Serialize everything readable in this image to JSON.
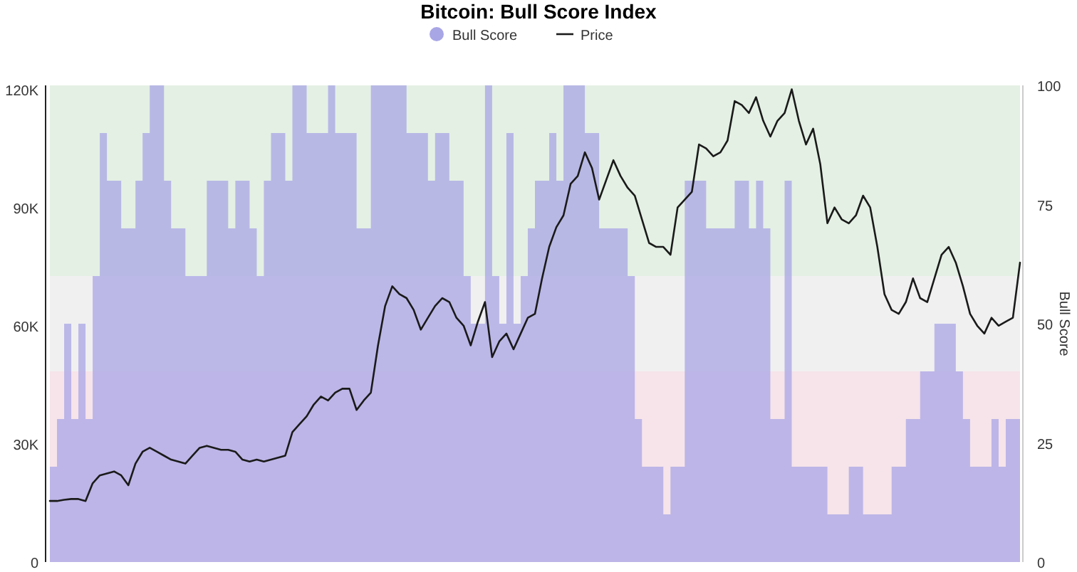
{
  "chart_data": {
    "type": "line",
    "title": "Bitcoin: Bull Score Index",
    "y2label": "Bull Score",
    "legend": "top",
    "categories": [
      null,
      null,
      null,
      null,
      null,
      null,
      null,
      null,
      null,
      null,
      null,
      null,
      null,
      null,
      null,
      null,
      null,
      null,
      null,
      null,
      null,
      null,
      null,
      null,
      null,
      null,
      null,
      null,
      null,
      null,
      null,
      null,
      null,
      null,
      null,
      null,
      null,
      null,
      null,
      null,
      null,
      null,
      null,
      null,
      null,
      null,
      null,
      null,
      null,
      null,
      null,
      null,
      null,
      null,
      null,
      null,
      null,
      null,
      null,
      null,
      null,
      null,
      null,
      null,
      null,
      null,
      null,
      null,
      null,
      null,
      null,
      null,
      null,
      null,
      null,
      null,
      null,
      null,
      null,
      null,
      null,
      null,
      null,
      null,
      null,
      null,
      null,
      null,
      null,
      null,
      null,
      null,
      null,
      null,
      null,
      null,
      null,
      null,
      null,
      null,
      null,
      null,
      null,
      null,
      null,
      null,
      null,
      null,
      null,
      null,
      null,
      null,
      null,
      null,
      null,
      null,
      null,
      null,
      null,
      null,
      null,
      null,
      null,
      null,
      null,
      null,
      null,
      null,
      null,
      null,
      null,
      null,
      null,
      null,
      null,
      null,
      null
    ],
    "series": [
      {
        "name": "Bull Score",
        "type": "area",
        "axis": "y2",
        "color": "#a9a6e6",
        "values": [
          20,
          30,
          50,
          30,
          50,
          30,
          60,
          90,
          80,
          80,
          70,
          70,
          80,
          90,
          100,
          100,
          80,
          70,
          70,
          60,
          60,
          60,
          80,
          80,
          80,
          70,
          80,
          80,
          70,
          60,
          80,
          90,
          90,
          80,
          100,
          100,
          90,
          90,
          90,
          100,
          90,
          90,
          90,
          70,
          70,
          100,
          100,
          100,
          100,
          100,
          90,
          90,
          90,
          80,
          90,
          90,
          80,
          80,
          60,
          50,
          50,
          100,
          60,
          50,
          90,
          50,
          60,
          70,
          80,
          80,
          90,
          80,
          100,
          100,
          100,
          90,
          90,
          70,
          70,
          70,
          70,
          60,
          30,
          20,
          20,
          20,
          10,
          20,
          20,
          80,
          80,
          80,
          70,
          70,
          70,
          70,
          80,
          80,
          70,
          80,
          70,
          30,
          30,
          80,
          20,
          20,
          20,
          20,
          20,
          10,
          10,
          10,
          20,
          20,
          10,
          10,
          10,
          10,
          20,
          20,
          30,
          30,
          40,
          40,
          50,
          50,
          50,
          40,
          30,
          20,
          20,
          20,
          30,
          20,
          30,
          30,
          80
        ]
      },
      {
        "name": "Price",
        "color": "#1a1a1a",
        "values": [
          15500,
          15500,
          15800,
          16000,
          16000,
          15500,
          20000,
          22000,
          22500,
          23000,
          22000,
          19500,
          25000,
          28000,
          29000,
          28000,
          27000,
          26000,
          25500,
          25000,
          27000,
          29000,
          29500,
          29000,
          28500,
          28500,
          28000,
          26000,
          25500,
          26000,
          25500,
          26000,
          26500,
          27000,
          33000,
          35000,
          37000,
          40000,
          42000,
          41000,
          43000,
          44000,
          44000,
          38600,
          41000,
          43000,
          55000,
          65000,
          70000,
          68000,
          67000,
          64000,
          59000,
          62000,
          65000,
          67000,
          66000,
          62000,
          60000,
          55000,
          61000,
          66000,
          52000,
          56000,
          58000,
          54000,
          58000,
          62000,
          63000,
          72000,
          80000,
          85000,
          88000,
          96000,
          98000,
          104000,
          100000,
          92000,
          97000,
          102000,
          98000,
          95000,
          93000,
          87000,
          81000,
          80000,
          80000,
          78000,
          90000,
          92000,
          94000,
          106000,
          105000,
          103000,
          104000,
          107000,
          117000,
          116000,
          114000,
          118000,
          112000,
          108000,
          112000,
          114000,
          120000,
          112000,
          106000,
          110000,
          101000,
          86000,
          90000,
          87000,
          86000,
          88000,
          93000,
          90000,
          80000,
          68000,
          64000,
          63000,
          66000,
          72000,
          67000,
          66000,
          72000,
          78000,
          80000,
          76000,
          70000,
          63000,
          60000,
          58000,
          62000,
          60000,
          61000,
          62000,
          76000
        ]
      }
    ],
    "ylim": [
      0,
      121000
    ],
    "yticks": [
      0,
      {
        "value": 30000,
        "label": "30K"
      },
      {
        "value": 60000,
        "label": "60K"
      },
      {
        "value": 90000,
        "label": "90K"
      },
      {
        "value": 120000,
        "label": "120K"
      }
    ],
    "y2lim": [
      0,
      100
    ],
    "y2ticks": [
      0,
      25,
      50,
      75,
      100
    ],
    "bands": [
      {
        "axis": "y2",
        "from": 60,
        "to": 100,
        "color": "#e4f0e4"
      },
      {
        "axis": "y2",
        "from": 40,
        "to": 60,
        "color": "#f0f0f0"
      },
      {
        "axis": "y2",
        "from": 0,
        "to": 40,
        "color": "#f6e4ea"
      }
    ]
  }
}
